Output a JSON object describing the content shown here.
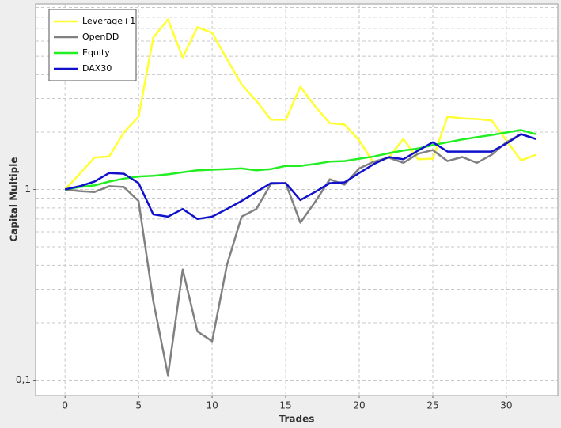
{
  "chart_data": {
    "type": "line",
    "log_y": true,
    "grid": true,
    "xlabel": "Trades",
    "ylabel": "Capital Multiple",
    "x": [
      0,
      1,
      2,
      3,
      4,
      5,
      6,
      7,
      8,
      9,
      10,
      11,
      12,
      13,
      14,
      15,
      16,
      17,
      18,
      19,
      20,
      21,
      22,
      23,
      24,
      25,
      26,
      27,
      28,
      29,
      30,
      31,
      32
    ],
    "xlim": [
      -2,
      33.5
    ],
    "xticks": [
      0,
      5,
      10,
      15,
      20,
      25,
      30
    ],
    "ylim": [
      0.083,
      9.4
    ],
    "yticks": [
      {
        "value": 0.1,
        "label": "0,1"
      },
      1
    ],
    "yminor": [
      0.2,
      0.3,
      0.4,
      0.5,
      0.6,
      0.7,
      0.8,
      0.9,
      2,
      3,
      4,
      5,
      6,
      7,
      8,
      9
    ],
    "legend": "upper left",
    "series": [
      {
        "name": "Leverage+1",
        "color": "#ffff33",
        "values": [
          1,
          1.21,
          1.47,
          1.49,
          1.99,
          2.41,
          6.26,
          7.8,
          4.93,
          7.1,
          6.63,
          4.84,
          3.56,
          2.92,
          2.32,
          2.32,
          3.46,
          2.73,
          2.23,
          2.19,
          1.81,
          1.37,
          1.47,
          1.84,
          1.44,
          1.45,
          2.41,
          2.36,
          2.34,
          2.3,
          1.81,
          1.42,
          1.52
        ]
      },
      {
        "name": "OpenDD",
        "color": "#808080",
        "values": [
          1,
          0.98,
          0.97,
          1.04,
          1.03,
          0.87,
          0.26,
          0.106,
          0.38,
          0.18,
          0.16,
          0.4,
          0.72,
          0.79,
          1.07,
          1.08,
          0.67,
          0.86,
          1.13,
          1.06,
          1.29,
          1.4,
          1.47,
          1.38,
          1.54,
          1.61,
          1.41,
          1.48,
          1.38,
          1.52,
          1.77,
          1.95,
          1.84
        ]
      },
      {
        "name": "Equity",
        "color": "#22ee22",
        "values": [
          1,
          1.03,
          1.05,
          1.1,
          1.14,
          1.17,
          1.18,
          1.2,
          1.23,
          1.26,
          1.27,
          1.28,
          1.29,
          1.26,
          1.28,
          1.33,
          1.33,
          1.36,
          1.4,
          1.41,
          1.45,
          1.49,
          1.55,
          1.6,
          1.64,
          1.71,
          1.77,
          1.83,
          1.88,
          1.93,
          1.99,
          2.05,
          1.95
        ]
      },
      {
        "name": "DAX30",
        "color": "#1111cc",
        "values": [
          1,
          1.04,
          1.1,
          1.22,
          1.21,
          1.08,
          0.74,
          0.72,
          0.79,
          0.7,
          0.72,
          0.79,
          0.87,
          0.97,
          1.08,
          1.08,
          0.88,
          0.97,
          1.08,
          1.09,
          1.22,
          1.36,
          1.48,
          1.44,
          1.6,
          1.77,
          1.58,
          1.58,
          1.58,
          1.58,
          1.74,
          1.95,
          1.84
        ]
      }
    ]
  }
}
